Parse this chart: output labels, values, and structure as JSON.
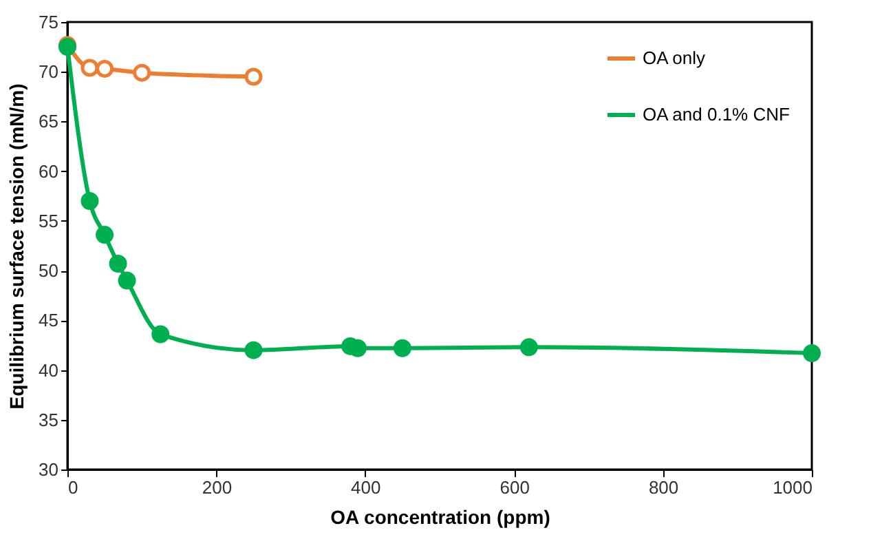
{
  "chart_data": {
    "type": "line",
    "xlabel": "OA concentration (ppm)",
    "ylabel": "Equilibrium surface tension (mN/m)",
    "xlim": [
      0,
      1000
    ],
    "xticks": [
      0,
      200,
      400,
      600,
      800,
      {
        "value": 1000,
        "label": "1000"
      }
    ],
    "ylim": [
      30,
      75
    ],
    "yticks": [
      30,
      35,
      40,
      45,
      50,
      55,
      60,
      65,
      70,
      75
    ],
    "grid": false,
    "legend": "top right",
    "marker": "circle",
    "series": [
      {
        "name": "OA only",
        "color": "#ed7d31",
        "x": [
          0,
          30,
          50,
          100,
          250
        ],
        "values": [
          72.7,
          70.4,
          70.3,
          69.9,
          69.5
        ]
      },
      {
        "name": "OA and 0.1% CNF",
        "color": "#00b050",
        "x": [
          0,
          30,
          50,
          68,
          80,
          125,
          250,
          380,
          390,
          450,
          620,
          1000
        ],
        "values": [
          72.5,
          57.0,
          53.6,
          50.7,
          49.0,
          43.6,
          42.0,
          42.4,
          42.2,
          42.2,
          42.3,
          41.7
        ]
      }
    ]
  }
}
